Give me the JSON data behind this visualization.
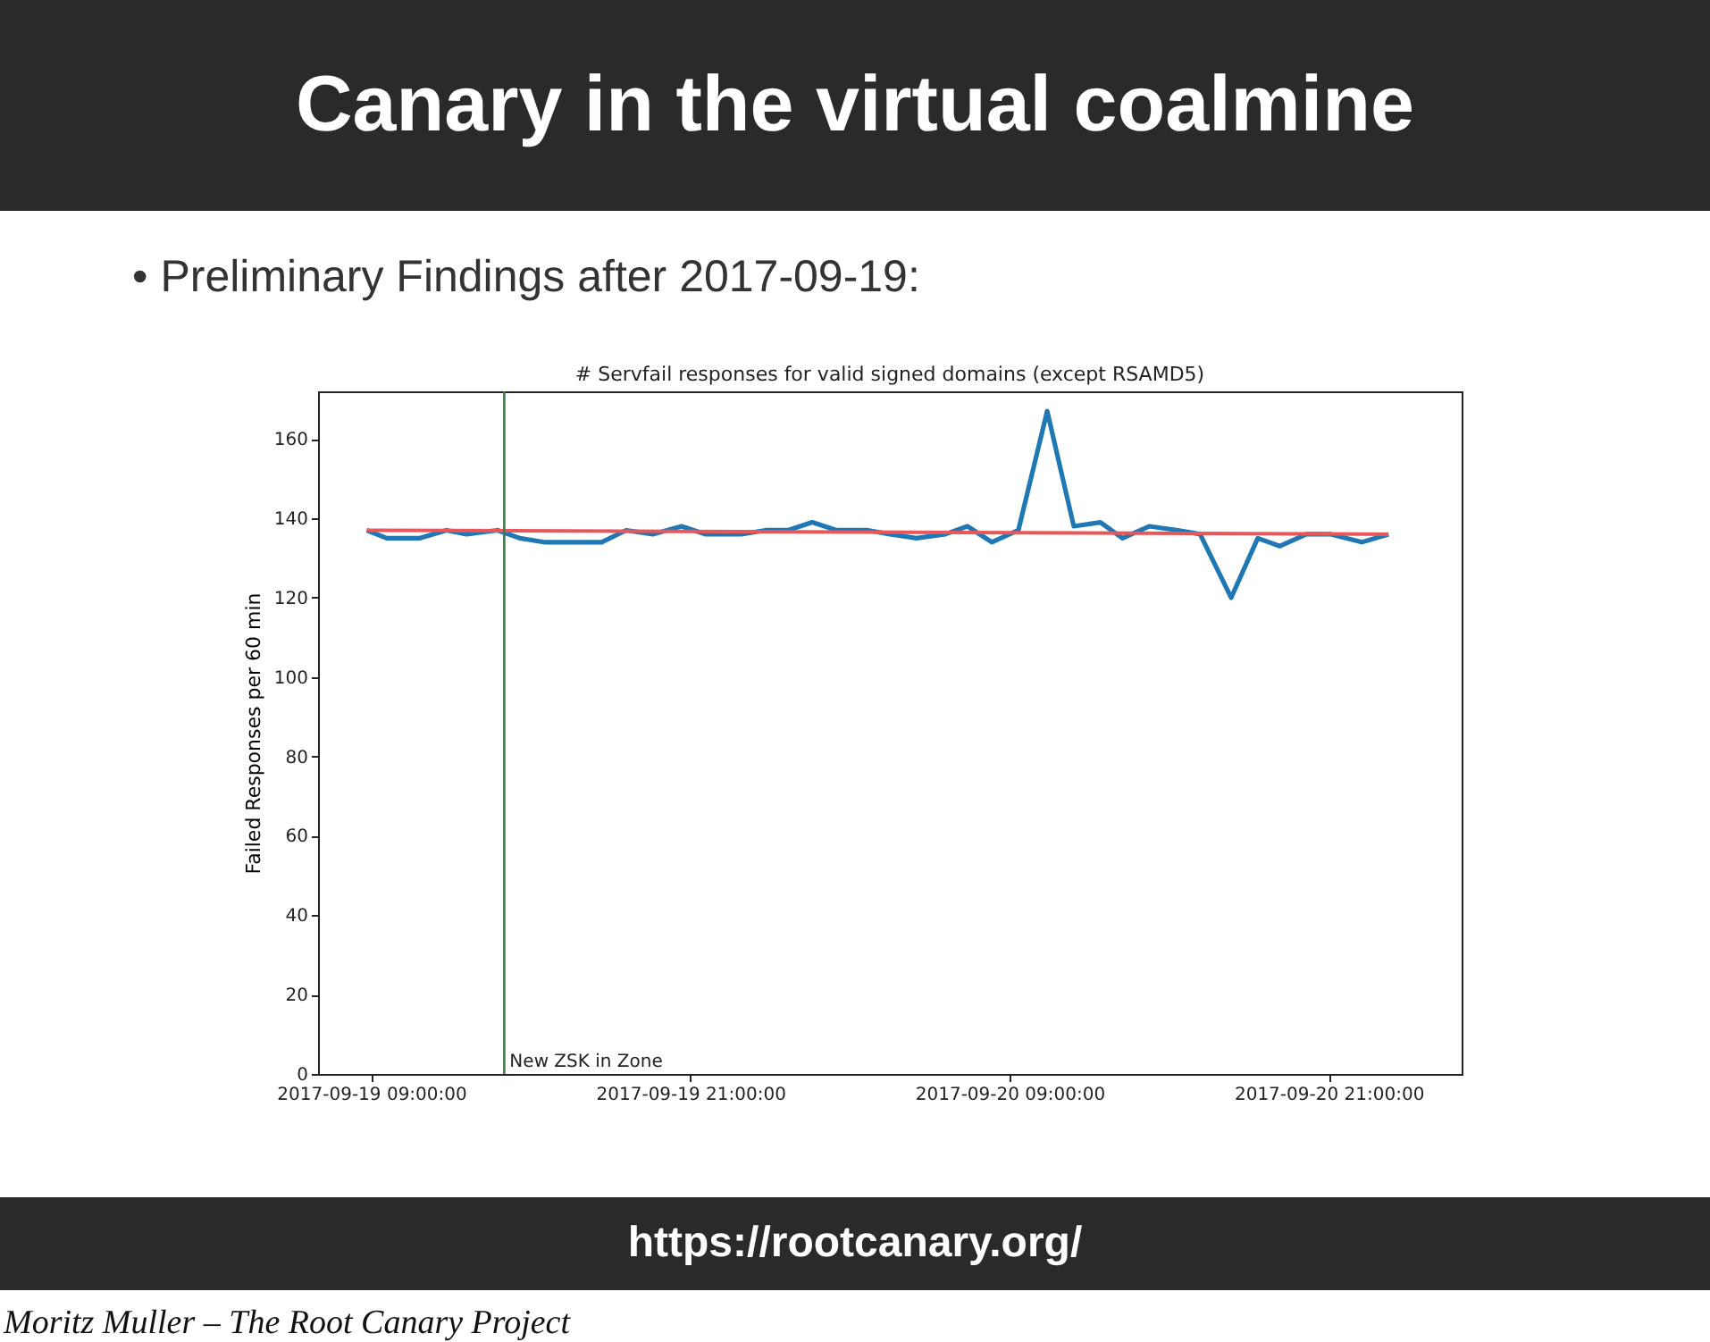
{
  "chart_data": {
    "type": "line",
    "title": "Canary in the virtual coalmine",
    "subtitle": "• Preliminary Findings after 2017-09-19:",
    "ylabel": "Failed Responses per 60 min",
    "annotations": [
      "# Servfail responses for valid signed domains (except RSAMD5)",
      "https://rootcanary.org/",
      "Moritz Muller – The Root Canary Project"
    ],
    "xlim": [
      "2017-09-19T07:00",
      "2017-09-21T02:00"
    ],
    "xticks": [
      {
        "value": "2017-09-19T09:00",
        "label": "2017-09-19 09:00:00"
      },
      {
        "value": "2017-09-19T21:00",
        "label": "2017-09-19 21:00:00"
      },
      {
        "value": "2017-09-20T09:00",
        "label": "2017-09-20 09:00:00"
      },
      {
        "value": "2017-09-20T21:00",
        "label": "2017-09-20 21:00:00"
      }
    ],
    "ylim": [
      0,
      172
    ],
    "yticks": [
      0,
      20,
      40,
      60,
      80,
      100,
      120,
      140,
      160
    ],
    "grid": false,
    "series": [
      {
        "color": "#1f77b4",
        "x": [
          "2017-09-19T08:50",
          "2017-09-19T09:35",
          "2017-09-19T10:50",
          "2017-09-19T11:50",
          "2017-09-19T12:35",
          "2017-09-19T13:45",
          "2017-09-19T14:35",
          "2017-09-19T15:30",
          "2017-09-19T17:40",
          "2017-09-19T18:35",
          "2017-09-19T19:35",
          "2017-09-19T20:40",
          "2017-09-19T21:35",
          "2017-09-19T22:55",
          "2017-09-19T23:50",
          "2017-09-20T00:40",
          "2017-09-20T01:35",
          "2017-09-20T02:30",
          "2017-09-20T03:40",
          "2017-09-20T04:30",
          "2017-09-20T05:30",
          "2017-09-20T06:35",
          "2017-09-20T07:25",
          "2017-09-20T08:20",
          "2017-09-20T09:20",
          "2017-09-20T10:25",
          "2017-09-20T11:25",
          "2017-09-20T12:25",
          "2017-09-20T13:15",
          "2017-09-20T14:15",
          "2017-09-20T15:20",
          "2017-09-20T16:10",
          "2017-09-20T17:20",
          "2017-09-20T18:20",
          "2017-09-20T19:10",
          "2017-09-20T20:10",
          "2017-09-20T21:05",
          "2017-09-20T22:15",
          "2017-09-20T23:15"
        ],
        "values": [
          137,
          135,
          135,
          137,
          136,
          137,
          135,
          134,
          134,
          137,
          136,
          138,
          136,
          136,
          137,
          137,
          139,
          137,
          137,
          136,
          135,
          136,
          138,
          134,
          137,
          167,
          138,
          139,
          135,
          138,
          137,
          136,
          120,
          135,
          133,
          136,
          136,
          134,
          136
        ]
      },
      {
        "color": "#e8585a",
        "x": [
          "2017-09-19T08:50",
          "2017-09-20T23:15"
        ],
        "values": [
          137,
          136
        ]
      }
    ],
    "ref_lines": [
      {
        "axis": "x",
        "value": "2017-09-19T14:00",
        "label": "New ZSK in Zone",
        "color": "#3a7d44"
      }
    ]
  }
}
